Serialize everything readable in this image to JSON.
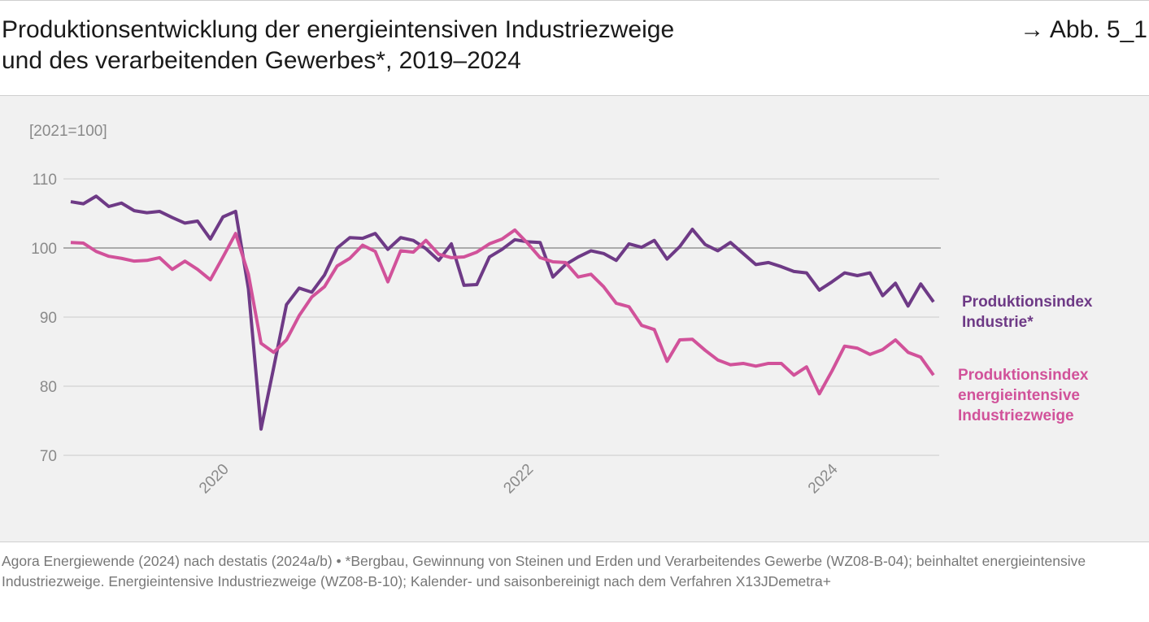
{
  "chart_data": {
    "type": "line",
    "title": [
      "Produktionsentwicklung der energieintensiven Industriezweige",
      "und des verarbeitenden Gewerbes*, 2019–2024"
    ],
    "figure_ref": "→ Abb. 5_1",
    "y_unit": "[2021=100]",
    "source": "Agora Energiewende (2024) nach destatis (2024a/b) • *Bergbau, Gewinnung von Steinen und Erden und Verarbeitendes Gewerbe (WZ08-B-04); beinhaltet energieintensive Industriezweige. Energieintensive Industriezweige (WZ08-B-10); Kalender- und saisonbereinigt nach dem Verfahren X13JDemetra+",
    "x": [
      2019,
      2019.083,
      2019.167,
      2019.25,
      2019.333,
      2019.417,
      2019.5,
      2019.583,
      2019.667,
      2019.75,
      2019.833,
      2019.917,
      2020,
      2020.083,
      2020.167,
      2020.25,
      2020.333,
      2020.417,
      2020.5,
      2020.583,
      2020.667,
      2020.75,
      2020.833,
      2020.917,
      2021,
      2021.083,
      2021.167,
      2021.25,
      2021.333,
      2021.417,
      2021.5,
      2021.583,
      2021.667,
      2021.75,
      2021.833,
      2021.917,
      2022,
      2022.083,
      2022.167,
      2022.25,
      2022.333,
      2022.417,
      2022.5,
      2022.583,
      2022.667,
      2022.75,
      2022.833,
      2022.917,
      2023,
      2023.083,
      2023.167,
      2023.25,
      2023.333,
      2023.417,
      2023.5,
      2023.583,
      2023.667,
      2023.75,
      2023.833,
      2023.917,
      2024,
      2024.083,
      2024.167,
      2024.25,
      2024.333,
      2024.417,
      2024.5,
      2024.583,
      2024.667
    ],
    "series": [
      {
        "name": "Produktionsindex Industrie*",
        "color": "#6e3a86",
        "values": [
          106.7,
          106.4,
          107.5,
          106.0,
          106.5,
          105.4,
          105.1,
          105.3,
          104.4,
          103.6,
          103.9,
          101.3,
          104.5,
          105.3,
          94.1,
          73.8,
          82.7,
          91.8,
          94.2,
          93.6,
          96.1,
          100.0,
          101.5,
          101.4,
          102.1,
          99.8,
          101.5,
          101.1,
          99.9,
          98.2,
          100.6,
          94.6,
          94.7,
          98.7,
          99.8,
          101.2,
          100.9,
          100.8,
          95.8,
          97.6,
          98.7,
          99.6,
          99.2,
          98.2,
          100.6,
          100.1,
          101.1,
          98.4,
          100.2,
          102.7,
          100.5,
          99.6,
          100.8,
          99.2,
          97.6,
          97.9,
          97.3,
          96.6,
          96.4,
          93.9,
          95.1,
          96.4,
          96.0,
          96.4,
          93.1,
          94.9,
          91.6,
          94.8,
          92.2
        ]
      },
      {
        "name": "Produktionsindex energieintensive Industriezweige",
        "color": "#d1529a",
        "values": [
          100.8,
          100.7,
          99.5,
          98.8,
          98.5,
          98.1,
          98.2,
          98.6,
          96.9,
          98.1,
          96.9,
          95.4,
          98.7,
          102.1,
          96.2,
          86.2,
          84.9,
          86.7,
          90.2,
          92.9,
          94.4,
          97.4,
          98.5,
          100.4,
          99.5,
          95.1,
          99.6,
          99.4,
          101.1,
          99.1,
          98.6,
          98.7,
          99.4,
          100.6,
          101.3,
          102.6,
          100.7,
          98.6,
          98.0,
          97.9,
          95.8,
          96.2,
          94.4,
          92.0,
          91.5,
          88.8,
          88.2,
          83.6,
          86.7,
          86.8,
          85.2,
          83.8,
          83.1,
          83.3,
          82.9,
          83.3,
          83.3,
          81.6,
          82.8,
          78.9,
          82.2,
          85.8,
          85.5,
          84.6,
          85.3,
          86.7,
          84.9,
          84.2,
          81.6
        ]
      }
    ],
    "xlim": [
      2019,
      2024.667
    ],
    "xticks": [
      2020,
      2022,
      2024
    ],
    "ylim": [
      70,
      110
    ],
    "yticks": [
      70,
      80,
      90,
      100,
      110
    ],
    "reference_line": 100,
    "grid": true
  }
}
